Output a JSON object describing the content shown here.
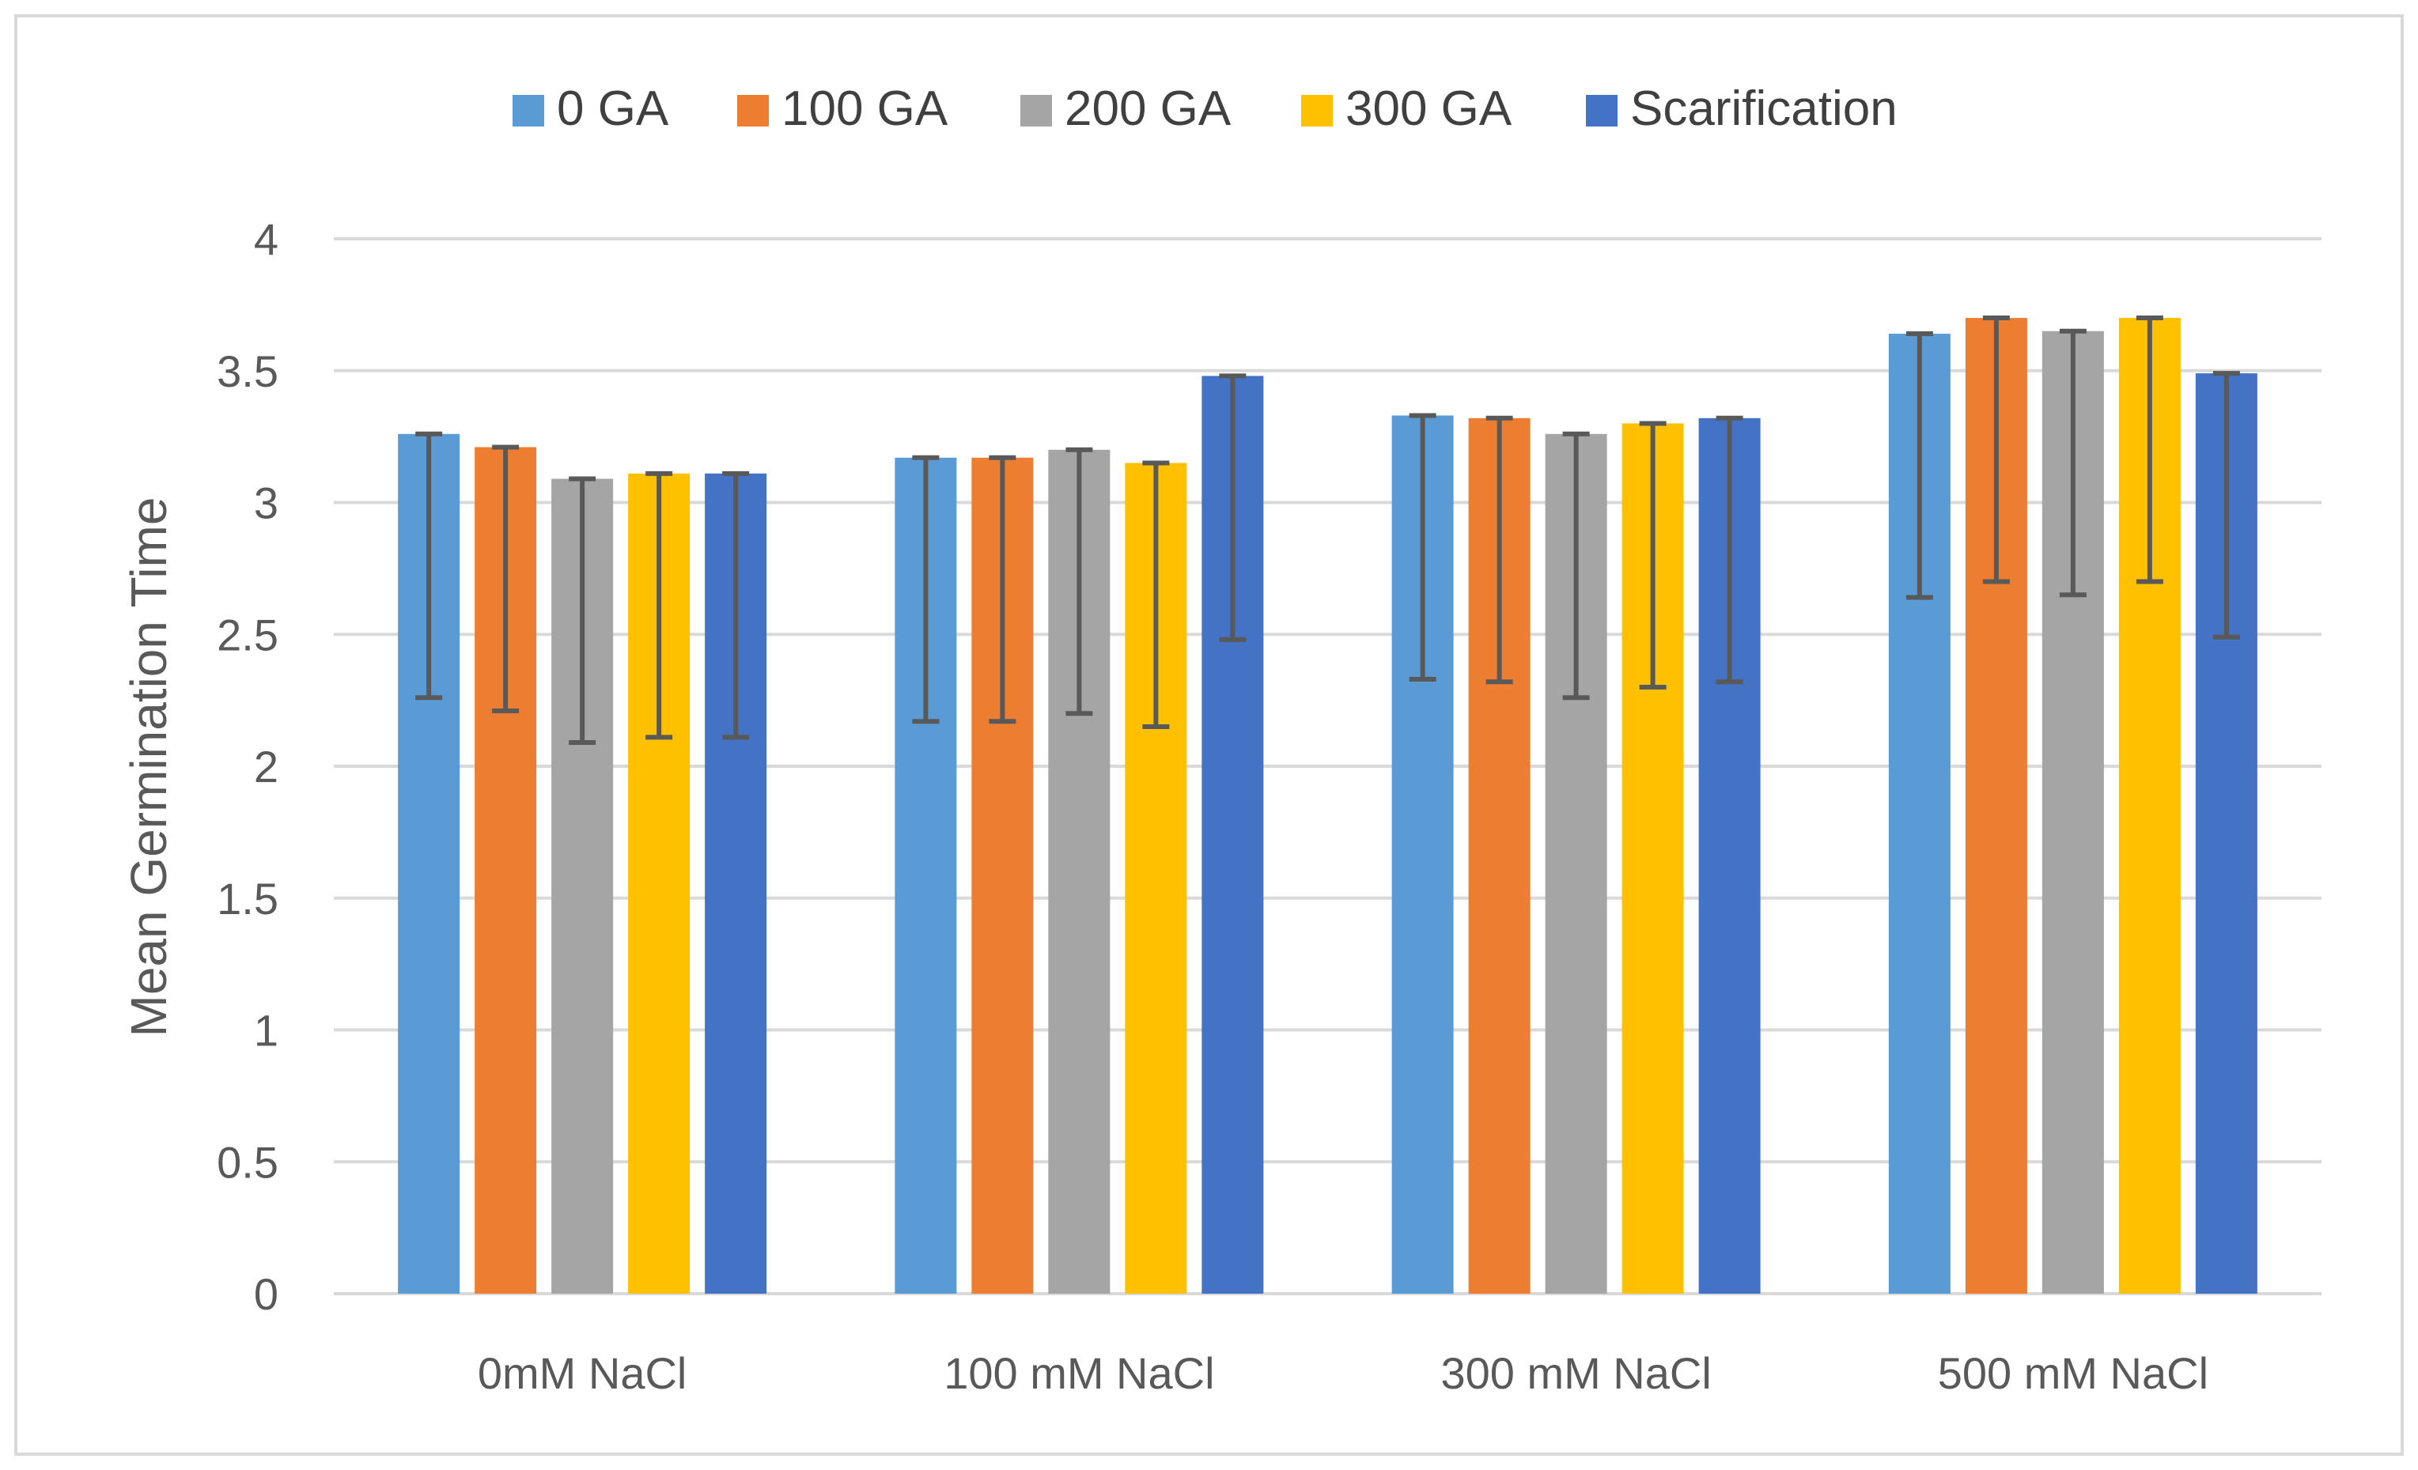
{
  "chart_data": {
    "type": "bar",
    "title": "",
    "xlabel": "",
    "ylabel": "Mean Germination Time",
    "ylim": [
      0,
      4
    ],
    "yticks": [
      0,
      0.5,
      1,
      1.5,
      2,
      2.5,
      3,
      3.5,
      4
    ],
    "ytick_labels": [
      "0",
      "0.5",
      "1",
      "1.5",
      "2",
      "2.5",
      "3",
      "3.5",
      "4"
    ],
    "grid": "horizontal",
    "legend_position": "top",
    "categories": [
      "0mM NaCl",
      "100 mM NaCl",
      "300 mM NaCl",
      "500 mM NaCl"
    ],
    "series": [
      {
        "name": "0 GA",
        "color": "#5B9BD5",
        "values": [
          3.26,
          3.17,
          3.33,
          3.64
        ],
        "error_lower": [
          1.0,
          1.0,
          1.0,
          1.0
        ],
        "error_upper": [
          0,
          0,
          0,
          0
        ]
      },
      {
        "name": "100 GA",
        "color": "#ED7D31",
        "values": [
          3.21,
          3.17,
          3.32,
          3.7
        ],
        "error_lower": [
          1.0,
          1.0,
          1.0,
          1.0
        ],
        "error_upper": [
          0,
          0,
          0,
          0
        ]
      },
      {
        "name": "200 GA",
        "color": "#A5A5A5",
        "values": [
          3.09,
          3.2,
          3.26,
          3.65
        ],
        "error_lower": [
          1.0,
          1.0,
          1.0,
          1.0
        ],
        "error_upper": [
          0,
          0,
          0,
          0
        ]
      },
      {
        "name": "300 GA",
        "color": "#FFC000",
        "values": [
          3.11,
          3.15,
          3.3,
          3.7
        ],
        "error_lower": [
          1.0,
          1.0,
          1.0,
          1.0
        ],
        "error_upper": [
          0,
          0,
          0,
          0
        ]
      },
      {
        "name": "Scarification",
        "color": "#4472C4",
        "values": [
          3.11,
          3.48,
          3.32,
          3.49
        ],
        "error_lower": [
          1.0,
          1.0,
          1.0,
          1.0
        ],
        "error_upper": [
          0,
          0,
          0,
          0
        ]
      }
    ],
    "colors": {
      "grid": "#D9D9D9",
      "axis": "#D9D9D9",
      "error_bar": "#595959",
      "frame_border": "#D9D9D9",
      "text": "#595959"
    }
  }
}
